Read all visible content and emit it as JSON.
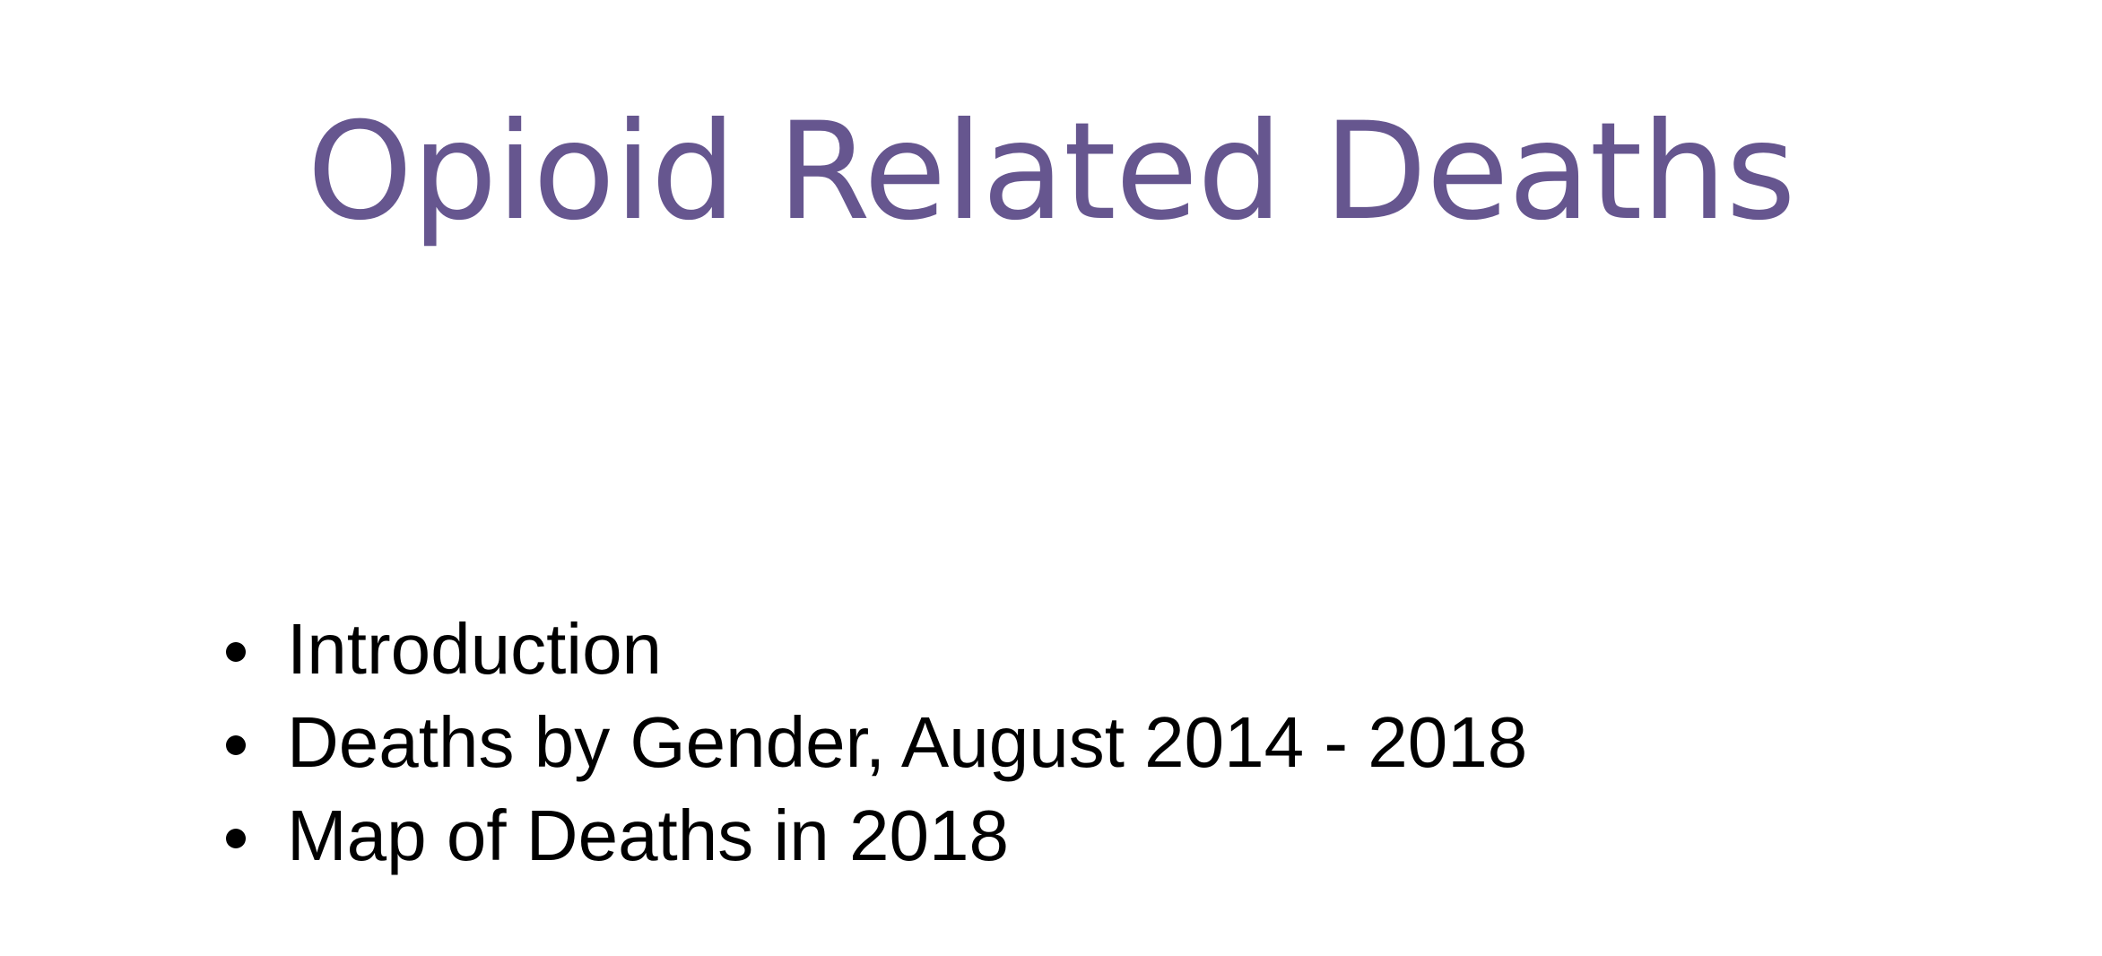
{
  "slide": {
    "title": "Opioid Related Deaths",
    "title_color": "#66568f",
    "bullets": [
      "Introduction",
      "Deaths by Gender, August 2014 - 2018",
      "Map of Deaths in 2018"
    ]
  }
}
